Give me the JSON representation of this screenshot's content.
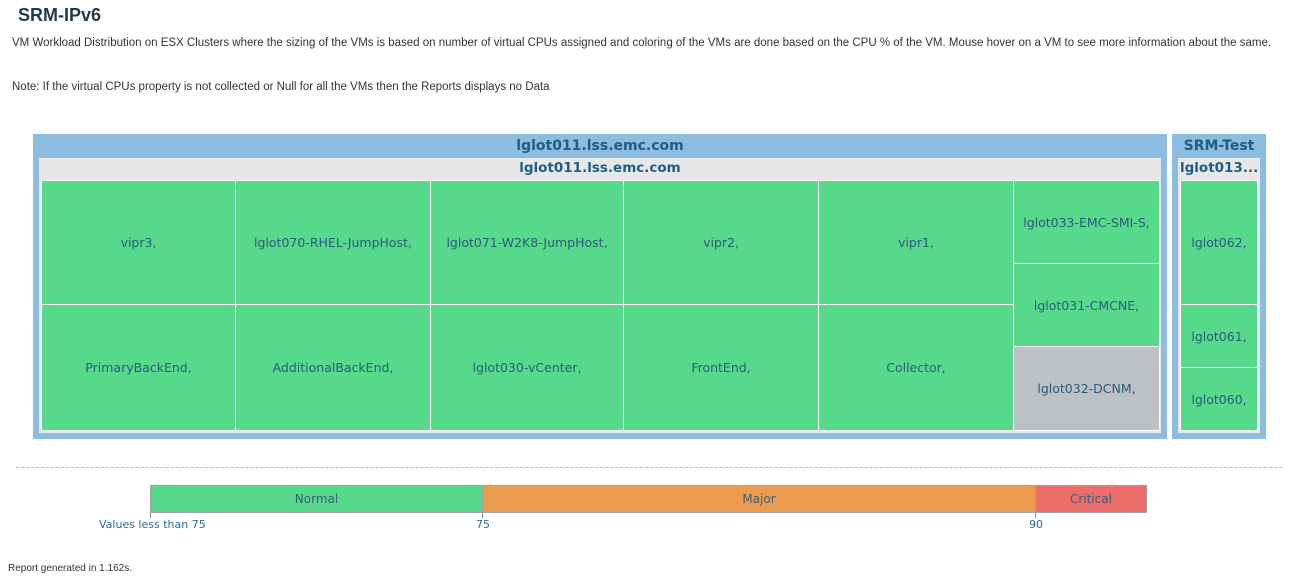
{
  "page": {
    "title": "SRM-IPv6",
    "description": "VM Workload Distribution on ESX Clusters where the sizing of the VMs is based on number of virtual CPUs assigned and coloring of the VMs are done based on the CPU % of the VM. Mouse hover on a VM to see more information about the same.",
    "note": "Note: If the virtual CPUs property is not collected or Null for all the VMs then the Reports displays no Data"
  },
  "treemap": {
    "clusters": [
      {
        "name": "lglot011.lss.emc.com",
        "host": "lglot011.lss.emc.com",
        "vms": [
          "vipr3,",
          "lglot070-RHEL-JumpHost,",
          "lglot071-W2K8-JumpHost,",
          "vipr2,",
          "vipr1,",
          "PrimaryBackEnd,",
          "AdditionalBackEnd,",
          "lglot030-vCenter,",
          "FrontEnd,",
          "Collector,",
          "lglot033-EMC-SMI-S,",
          "lglot031-CMCNE,",
          "lglot032-DCNM,"
        ]
      },
      {
        "name": "SRM-Test",
        "host": "lglot013...",
        "vms": [
          "lglot062,",
          "lglot061,",
          "lglot060,"
        ]
      }
    ]
  },
  "legend": {
    "normal_label": "Normal",
    "major_label": "Major",
    "critical_label": "Critical",
    "low_label": "Values less than 75",
    "threshold1": "75",
    "threshold2": "90",
    "colors": {
      "normal": "#57d98c",
      "major": "#ec9b4e",
      "critical": "#ec6e6a",
      "unknown": "#bcc1c6"
    }
  },
  "footer": {
    "text": "Report generated in 1.162s."
  }
}
